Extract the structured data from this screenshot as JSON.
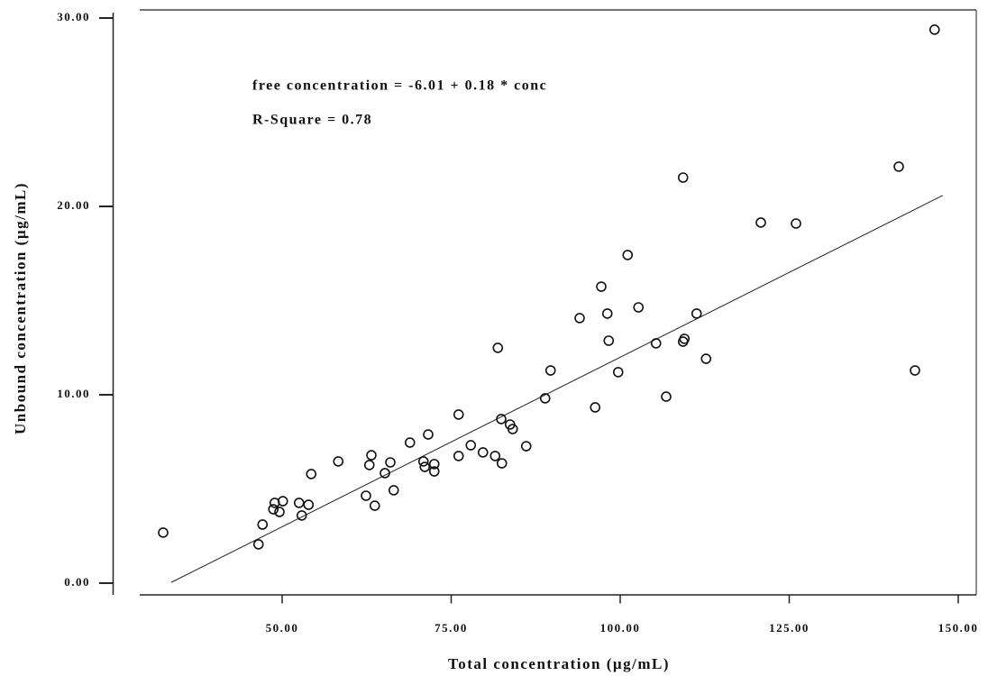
{
  "chart_data": {
    "type": "scatter",
    "xlabel": "Total concentration (µg/mL)",
    "ylabel": "Unbound concentration (µg/mL)",
    "annotations": [
      "free concentration = -6.01 + 0.18 * conc",
      "R-Square = 0.78"
    ],
    "xlim": [
      25,
      152
    ],
    "ylim": [
      -0.6,
      30.5
    ],
    "xticks": [
      {
        "value": 50,
        "label": "50.00"
      },
      {
        "value": 75,
        "label": "75.00"
      },
      {
        "value": 100,
        "label": "100.00"
      },
      {
        "value": 125,
        "label": "125.00"
      },
      {
        "value": 150,
        "label": "150.00"
      }
    ],
    "yticks": [
      {
        "value": 0,
        "label": "0.00"
      },
      {
        "value": 10,
        "label": "10.00"
      },
      {
        "value": 20,
        "label": "20.00"
      },
      {
        "value": 30,
        "label": "30.00"
      }
    ],
    "color": "#111111",
    "x": [
      32.4,
      46.5,
      47.1,
      48.7,
      48.9,
      49.6,
      50.1,
      52.5,
      52.9,
      53.9,
      54.3,
      58.3,
      62.4,
      62.9,
      63.2,
      63.7,
      65.2,
      66.0,
      66.5,
      68.9,
      70.9,
      71.1,
      71.6,
      72.5,
      72.5,
      76.1,
      76.1,
      77.9,
      79.7,
      81.5,
      81.9,
      82.4,
      82.5,
      83.7,
      84.1,
      86.1,
      88.9,
      89.7,
      94.0,
      96.3,
      97.2,
      98.1,
      98.3,
      99.7,
      101.1,
      102.7,
      105.3,
      106.8,
      109.3,
      109.5,
      109.3,
      111.3,
      112.7,
      120.8,
      126.0,
      141.2,
      143.6,
      146.5
    ],
    "values": [
      2.68,
      2.06,
      3.11,
      3.92,
      4.26,
      3.78,
      4.35,
      4.26,
      3.59,
      4.16,
      5.79,
      6.46,
      4.64,
      6.27,
      6.79,
      4.11,
      5.84,
      6.41,
      4.93,
      7.46,
      6.46,
      6.17,
      7.89,
      6.32,
      5.93,
      8.95,
      6.75,
      7.32,
      6.94,
      6.75,
      12.49,
      8.71,
      6.36,
      8.42,
      8.18,
      7.27,
      9.81,
      11.29,
      14.07,
      9.33,
      15.74,
      14.31,
      12.87,
      11.2,
      17.42,
      14.64,
      12.73,
      9.9,
      12.82,
      12.97,
      21.53,
      14.31,
      11.91,
      19.14,
      19.09,
      22.11,
      11.29,
      29.38
    ],
    "fit_line": {
      "x": [
        33.6,
        147.7
      ],
      "values": [
        0.04,
        20.58
      ]
    }
  }
}
